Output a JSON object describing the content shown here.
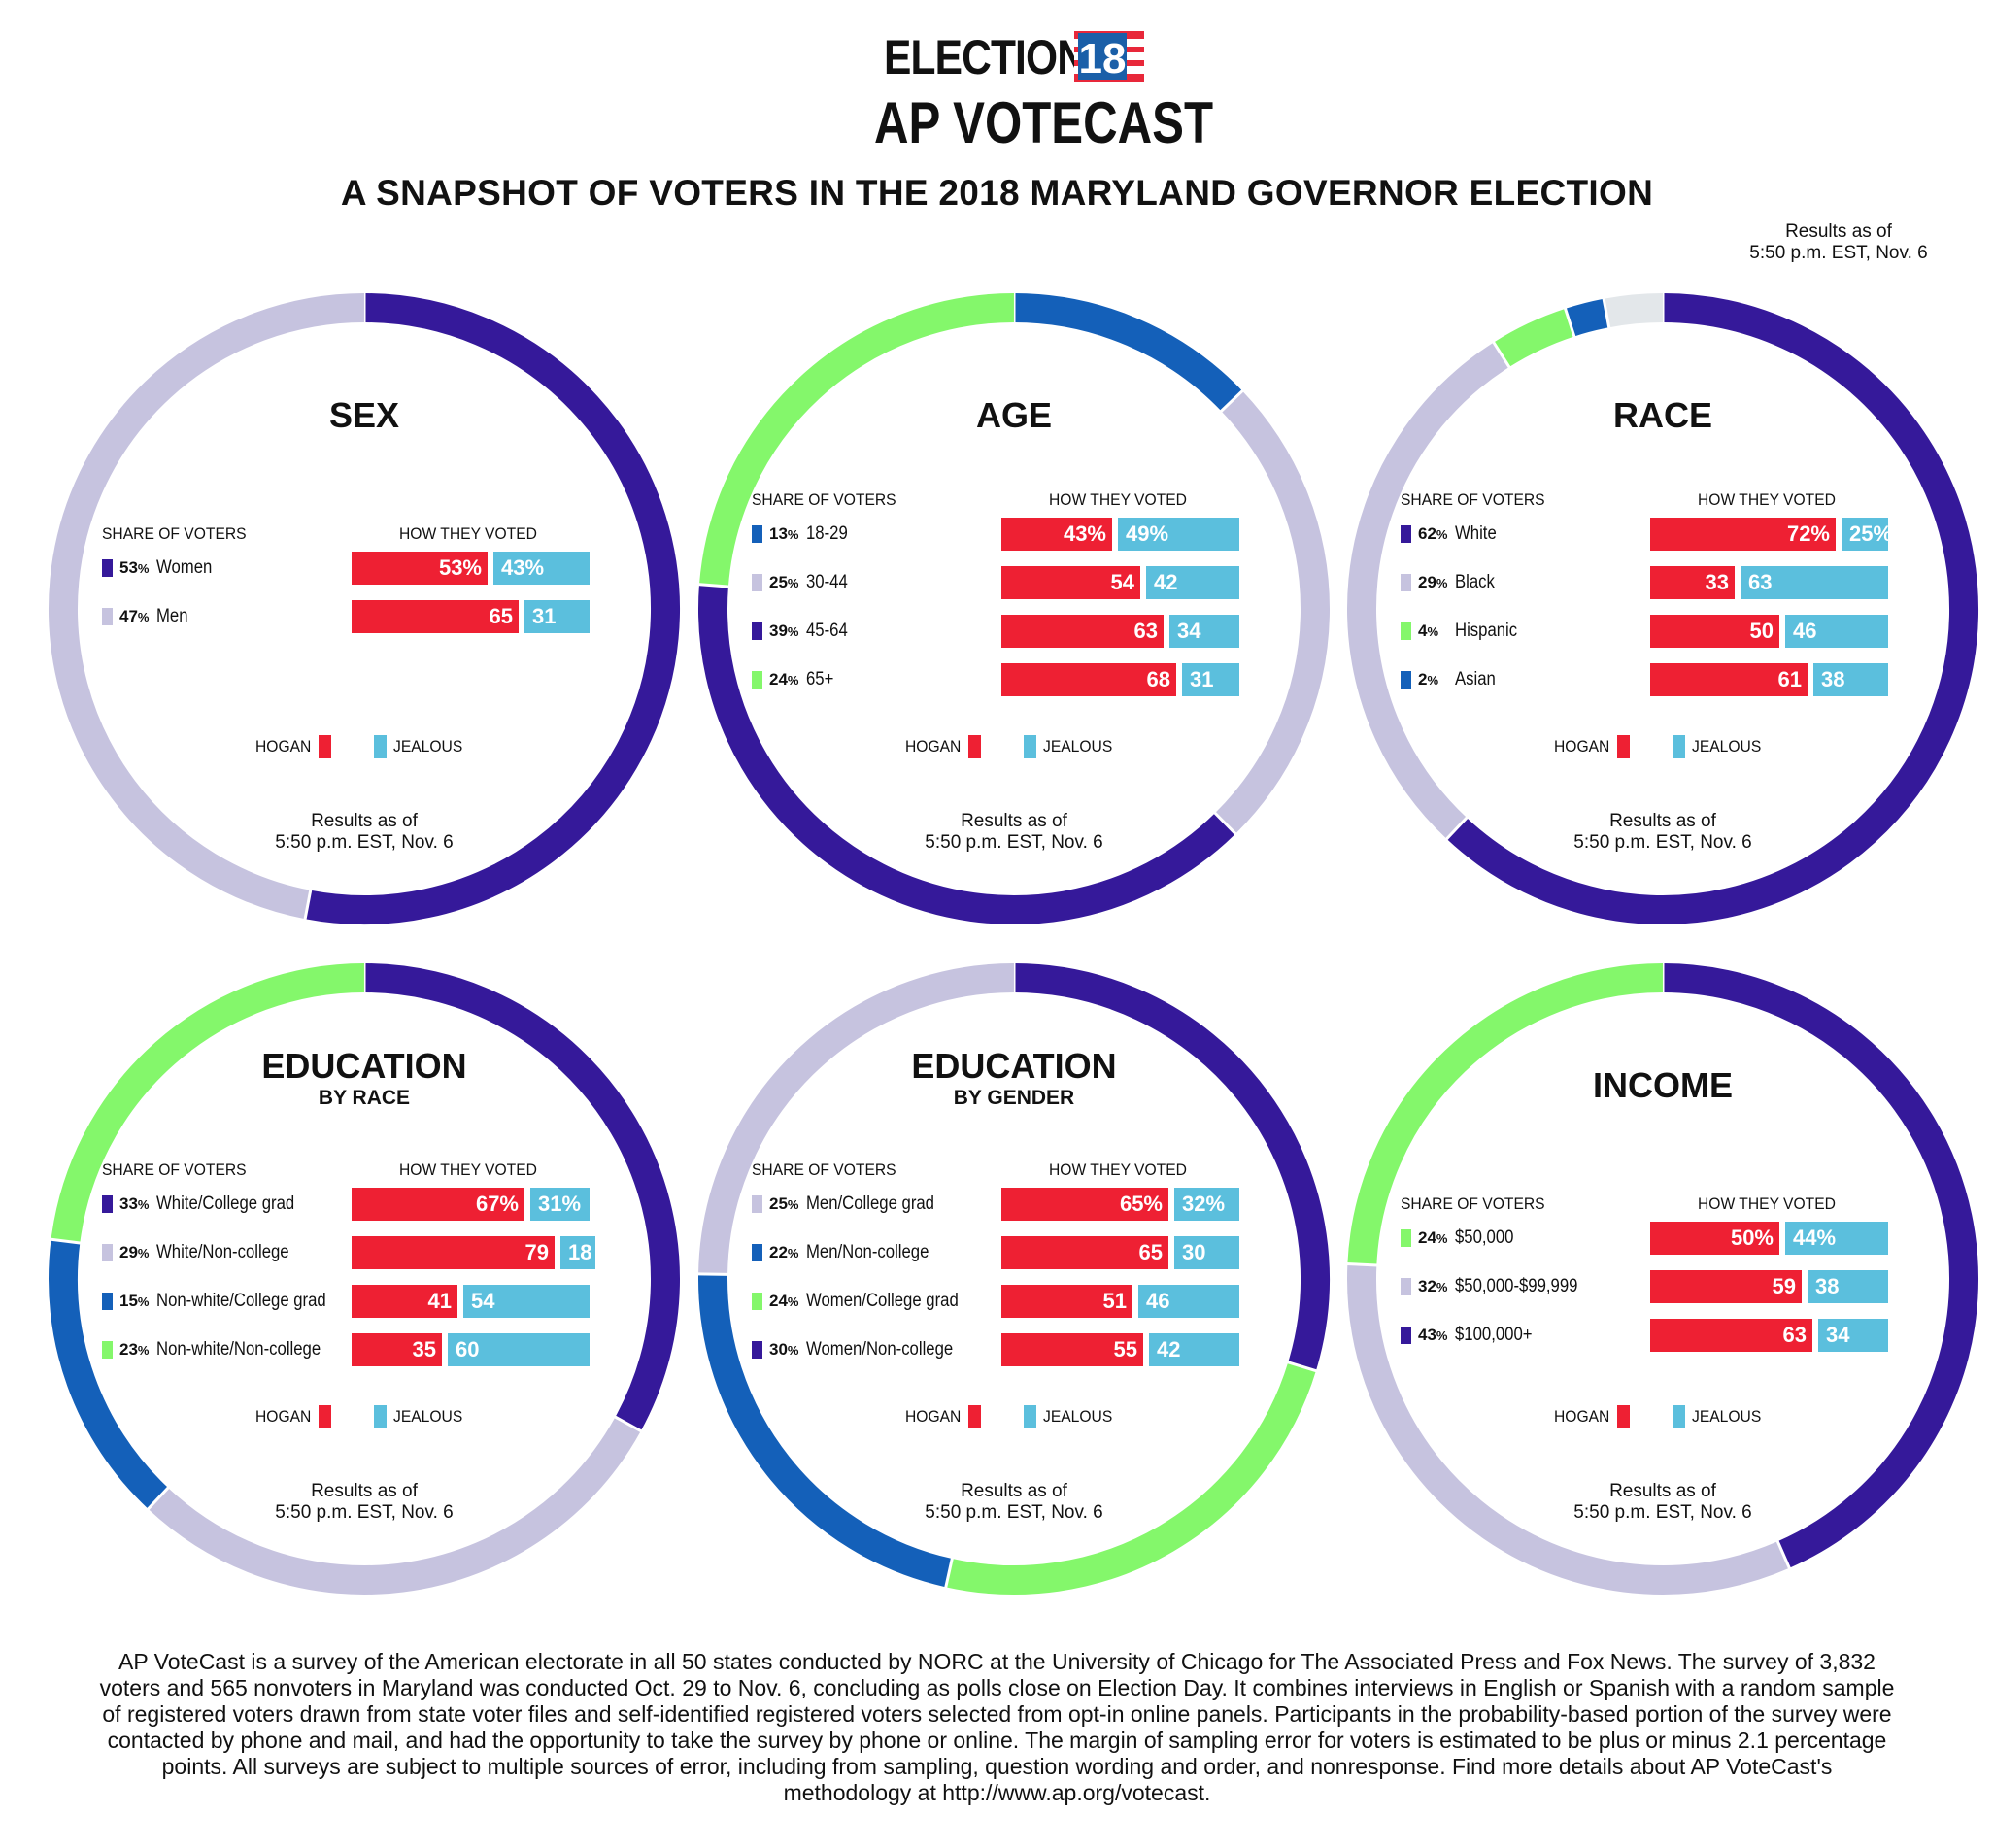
{
  "header": {
    "logo_election": "ELECTION",
    "logo_year": "18",
    "logo_votecast": "AP VOTECAST",
    "title": "A SNAPSHOT OF VOTERS IN THE 2018 MARYLAND GOVERNOR ELECTION",
    "results_note_line1": "Results as of",
    "results_note_line2": "5:50 p.m. EST, Nov. 6"
  },
  "colors": {
    "hogan": "#ee2033",
    "jealous": "#5bbfdd",
    "dark_purple": "#35199a",
    "lavender": "#c6c3df",
    "green": "#84f76b",
    "blue": "#1460b9",
    "gray": "#e3e7ea",
    "logo_blue": "#1a5fa8",
    "logo_red": "#e8283a"
  },
  "labels": {
    "share_header": "SHARE OF VOTERS",
    "voted_header": "HOW THEY VOTED",
    "hogan": "HOGAN",
    "jealous": "JEALOUS",
    "results_line1": "Results as of",
    "results_line2": "5:50 p.m. EST, Nov. 6",
    "percent_suffix": "%"
  },
  "chart_data": [
    {
      "type": "bar",
      "title": "SEX",
      "subtitle": "",
      "series": [
        {
          "name": "HOGAN",
          "values": [
            53,
            65
          ]
        },
        {
          "name": "JEALOUS",
          "values": [
            43,
            31
          ]
        }
      ],
      "rows": [
        {
          "share": 53,
          "category": "Women",
          "color": "dark_purple",
          "hogan": 53,
          "jealous": 43,
          "hogan_label": "53%",
          "jealous_label": "43%"
        },
        {
          "share": 47,
          "category": "Men",
          "color": "lavender",
          "hogan": 65,
          "jealous": 31,
          "hogan_label": "65",
          "jealous_label": "31"
        }
      ]
    },
    {
      "type": "bar",
      "title": "AGE",
      "subtitle": "",
      "series": [
        {
          "name": "HOGAN",
          "values": [
            43,
            54,
            63,
            68
          ]
        },
        {
          "name": "JEALOUS",
          "values": [
            49,
            42,
            34,
            31
          ]
        }
      ],
      "rows": [
        {
          "share": 13,
          "category": "18-29",
          "color": "blue",
          "hogan": 43,
          "jealous": 49,
          "hogan_label": "43%",
          "jealous_label": "49%"
        },
        {
          "share": 25,
          "category": "30-44",
          "color": "lavender",
          "hogan": 54,
          "jealous": 42,
          "hogan_label": "54",
          "jealous_label": "42"
        },
        {
          "share": 39,
          "category": "45-64",
          "color": "dark_purple",
          "hogan": 63,
          "jealous": 34,
          "hogan_label": "63",
          "jealous_label": "34"
        },
        {
          "share": 24,
          "category": "65+",
          "color": "green",
          "hogan": 68,
          "jealous": 31,
          "hogan_label": "68",
          "jealous_label": "31"
        }
      ]
    },
    {
      "type": "bar",
      "title": "RACE",
      "subtitle": "",
      "series": [
        {
          "name": "HOGAN",
          "values": [
            72,
            33,
            50,
            61
          ]
        },
        {
          "name": "JEALOUS",
          "values": [
            25,
            63,
            46,
            38
          ]
        }
      ],
      "rows": [
        {
          "share": 62,
          "category": "White",
          "color": "dark_purple",
          "hogan": 72,
          "jealous": 25,
          "hogan_label": "72%",
          "jealous_label": "25%"
        },
        {
          "share": 29,
          "category": "Black",
          "color": "lavender",
          "hogan": 33,
          "jealous": 63,
          "hogan_label": "33",
          "jealous_label": "63"
        },
        {
          "share": 4,
          "category": "Hispanic",
          "color": "green",
          "hogan": 50,
          "jealous": 46,
          "hogan_label": "50",
          "jealous_label": "46"
        },
        {
          "share": 2,
          "category": "Asian",
          "color": "blue",
          "hogan": 61,
          "jealous": 38,
          "hogan_label": "61",
          "jealous_label": "38"
        }
      ],
      "ring_remainder": 3
    },
    {
      "type": "bar",
      "title": "EDUCATION",
      "subtitle": "BY RACE",
      "series": [
        {
          "name": "HOGAN",
          "values": [
            67,
            79,
            41,
            35
          ]
        },
        {
          "name": "JEALOUS",
          "values": [
            31,
            18,
            54,
            60
          ]
        }
      ],
      "rows": [
        {
          "share": 33,
          "category": "White/College grad",
          "color": "dark_purple",
          "hogan": 67,
          "jealous": 31,
          "hogan_label": "67%",
          "jealous_label": "31%"
        },
        {
          "share": 29,
          "category": "White/Non-college",
          "color": "lavender",
          "hogan": 79,
          "jealous": 18,
          "hogan_label": "79",
          "jealous_label": "18"
        },
        {
          "share": 15,
          "category": "Non-white/College grad",
          "color": "blue",
          "hogan": 41,
          "jealous": 54,
          "hogan_label": "41",
          "jealous_label": "54"
        },
        {
          "share": 23,
          "category": "Non-white/Non-college",
          "color": "green",
          "hogan": 35,
          "jealous": 60,
          "hogan_label": "35",
          "jealous_label": "60"
        }
      ]
    },
    {
      "type": "bar",
      "title": "EDUCATION",
      "subtitle": "BY GENDER",
      "series": [
        {
          "name": "HOGAN",
          "values": [
            65,
            65,
            51,
            55
          ]
        },
        {
          "name": "JEALOUS",
          "values": [
            32,
            30,
            46,
            42
          ]
        }
      ],
      "rows": [
        {
          "share": 25,
          "category": "Men/College grad",
          "color": "lavender",
          "hogan": 65,
          "jealous": 32,
          "hogan_label": "65%",
          "jealous_label": "32%"
        },
        {
          "share": 22,
          "category": "Men/Non-college",
          "color": "blue",
          "hogan": 65,
          "jealous": 30,
          "hogan_label": "65",
          "jealous_label": "30"
        },
        {
          "share": 24,
          "category": "Women/College grad",
          "color": "green",
          "hogan": 51,
          "jealous": 46,
          "hogan_label": "51",
          "jealous_label": "46"
        },
        {
          "share": 30,
          "category": "Women/Non-college",
          "color": "dark_purple",
          "hogan": 55,
          "jealous": 42,
          "hogan_label": "55",
          "jealous_label": "42"
        }
      ],
      "ring_order": [
        3,
        2,
        1,
        0
      ]
    },
    {
      "type": "bar",
      "title": "INCOME",
      "subtitle": "",
      "series": [
        {
          "name": "HOGAN",
          "values": [
            50,
            59,
            63
          ]
        },
        {
          "name": "JEALOUS",
          "values": [
            44,
            38,
            34
          ]
        }
      ],
      "rows": [
        {
          "share": 24,
          "category": "$50,000",
          "color": "green",
          "hogan": 50,
          "jealous": 44,
          "hogan_label": "50%",
          "jealous_label": "44%"
        },
        {
          "share": 32,
          "category": "$50,000-$99,999",
          "color": "lavender",
          "hogan": 59,
          "jealous": 38,
          "hogan_label": "59",
          "jealous_label": "38"
        },
        {
          "share": 43,
          "category": "$100,000+",
          "color": "dark_purple",
          "hogan": 63,
          "jealous": 34,
          "hogan_label": "63",
          "jealous_label": "34"
        }
      ],
      "ring_order": [
        2,
        1,
        0
      ]
    }
  ],
  "footnote": "AP VoteCast is a survey of the American electorate in all 50 states conducted by NORC at the University of Chicago for The Associated Press and Fox News. The survey of 3,832 voters and 565 nonvoters in Maryland was conducted Oct. 29 to Nov. 6, concluding as polls close on Election Day. It combines interviews in English or Spanish with a random sample of registered voters drawn from state voter files and self-identified registered voters selected from opt-in online panels. Participants in the probability-based portion of the survey were contacted by phone and mail, and had the opportunity to take the survey by phone or online. The margin of sampling error for voters is estimated to be plus or minus 2.1 percentage points. All surveys are subject to multiple sources of error, including from sampling, question wording and order, and nonresponse. Find more details about AP VoteCast's methodology at http://www.ap.org/votecast."
}
